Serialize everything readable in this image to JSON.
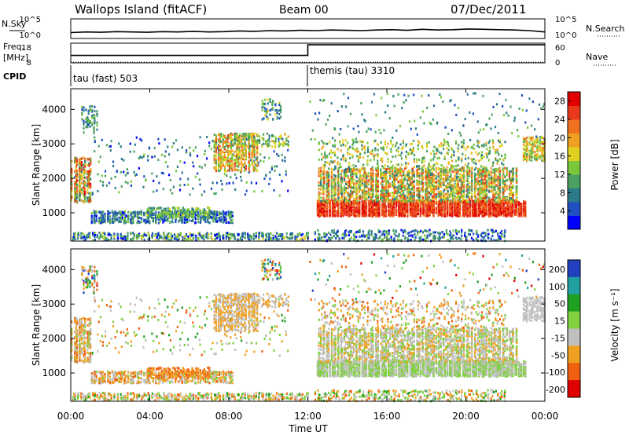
{
  "header": {
    "station": "Wallops Island (fitACF)",
    "beam": "Beam 00",
    "date": "07/Dec/2011"
  },
  "chart_data": [
    {
      "type": "line",
      "title": "",
      "left_label": "N.Sky",
      "right_label": "N.Search",
      "left_ticks": [
        "10^5",
        "10^0"
      ],
      "right_ticks": [
        "10^5",
        "10^0"
      ],
      "series": [
        {
          "name": "N.Sky",
          "values": [
            1.3,
            1.5,
            1.4,
            1.6,
            1.5,
            1.4,
            1.6,
            1.5,
            1.7,
            1.5,
            1.6,
            1.8,
            1.7,
            1.9,
            1.8,
            2.0,
            1.9,
            2.1,
            2.0,
            1.9,
            2.1,
            2.2,
            2.0,
            2.3,
            2.1,
            2.2,
            2.4,
            2.3,
            2.2,
            2.1,
            1.9,
            1.5
          ]
        }
      ]
    },
    {
      "type": "line",
      "title": "",
      "left_label": "Freq. [MHz]",
      "right_label": "Nave",
      "left_ticks": [
        "18",
        "8"
      ],
      "right_ticks": [
        "60",
        "0"
      ],
      "series": [
        {
          "name": "Freq.",
          "x": [
            "00:00",
            "12:00",
            "12:00",
            "24:00"
          ],
          "values": [
            10.5,
            10.5,
            17.0,
            17.0
          ]
        },
        {
          "name": "Nave",
          "x": [
            "00:00",
            "12:00",
            "12:00",
            "24:00"
          ],
          "values": [
            2,
            2,
            2,
            2
          ]
        }
      ]
    },
    {
      "type": "table",
      "row_label": "CPID",
      "entries": [
        {
          "start": "00:00",
          "label": "tau (fast) 503"
        },
        {
          "start": "12:00",
          "label": "themis (tau) 3310"
        }
      ]
    },
    {
      "type": "heatmap",
      "quantity": "power",
      "ylabel": "Slant Range [km]",
      "xlabel": "Time UT",
      "xlim": [
        "00:00",
        "24:00"
      ],
      "ylim": [
        180,
        4600
      ],
      "x_ticks": [
        "00:00",
        "04:00",
        "08:00",
        "12:00",
        "16:00",
        "20:00",
        "00:00"
      ],
      "y_ticks": [
        1000,
        2000,
        3000,
        4000
      ],
      "colorbar": {
        "label": "Power [dB]",
        "ticks": [
          4,
          8,
          12,
          16,
          20,
          24,
          28
        ],
        "range": [
          0,
          30
        ],
        "colors": [
          "#0000ff",
          "#1f4fc0",
          "#2a7a8a",
          "#4aa060",
          "#7ac83a",
          "#e0d020",
          "#f0a020",
          "#f07020",
          "#e83a1a",
          "#e00000"
        ]
      },
      "grid": false
    },
    {
      "type": "heatmap",
      "quantity": "velocity",
      "ylabel": "Slant Range [km]",
      "xlabel": "Time UT",
      "xlim": [
        "00:00",
        "24:00"
      ],
      "ylim": [
        180,
        4600
      ],
      "x_ticks": [
        "00:00",
        "04:00",
        "08:00",
        "12:00",
        "16:00",
        "20:00",
        "00:00"
      ],
      "y_ticks": [
        1000,
        2000,
        3000,
        4000
      ],
      "colorbar": {
        "label": "Velocity [m s^-1]",
        "ticks": [
          200,
          100,
          50,
          15,
          -15,
          -50,
          -100,
          -200
        ],
        "colors": [
          "#2040c0",
          "#20a0a0",
          "#20a020",
          "#80d040",
          "#c0c0c0",
          "#f0a020",
          "#f06010",
          "#e00000"
        ]
      },
      "grid": false
    }
  ],
  "labels": {
    "time_axis": "Time UT",
    "ylabel": "Slant Range [km]",
    "power_label": "Power [dB]",
    "velocity_label": "Velocity [m s⁻¹]"
  }
}
